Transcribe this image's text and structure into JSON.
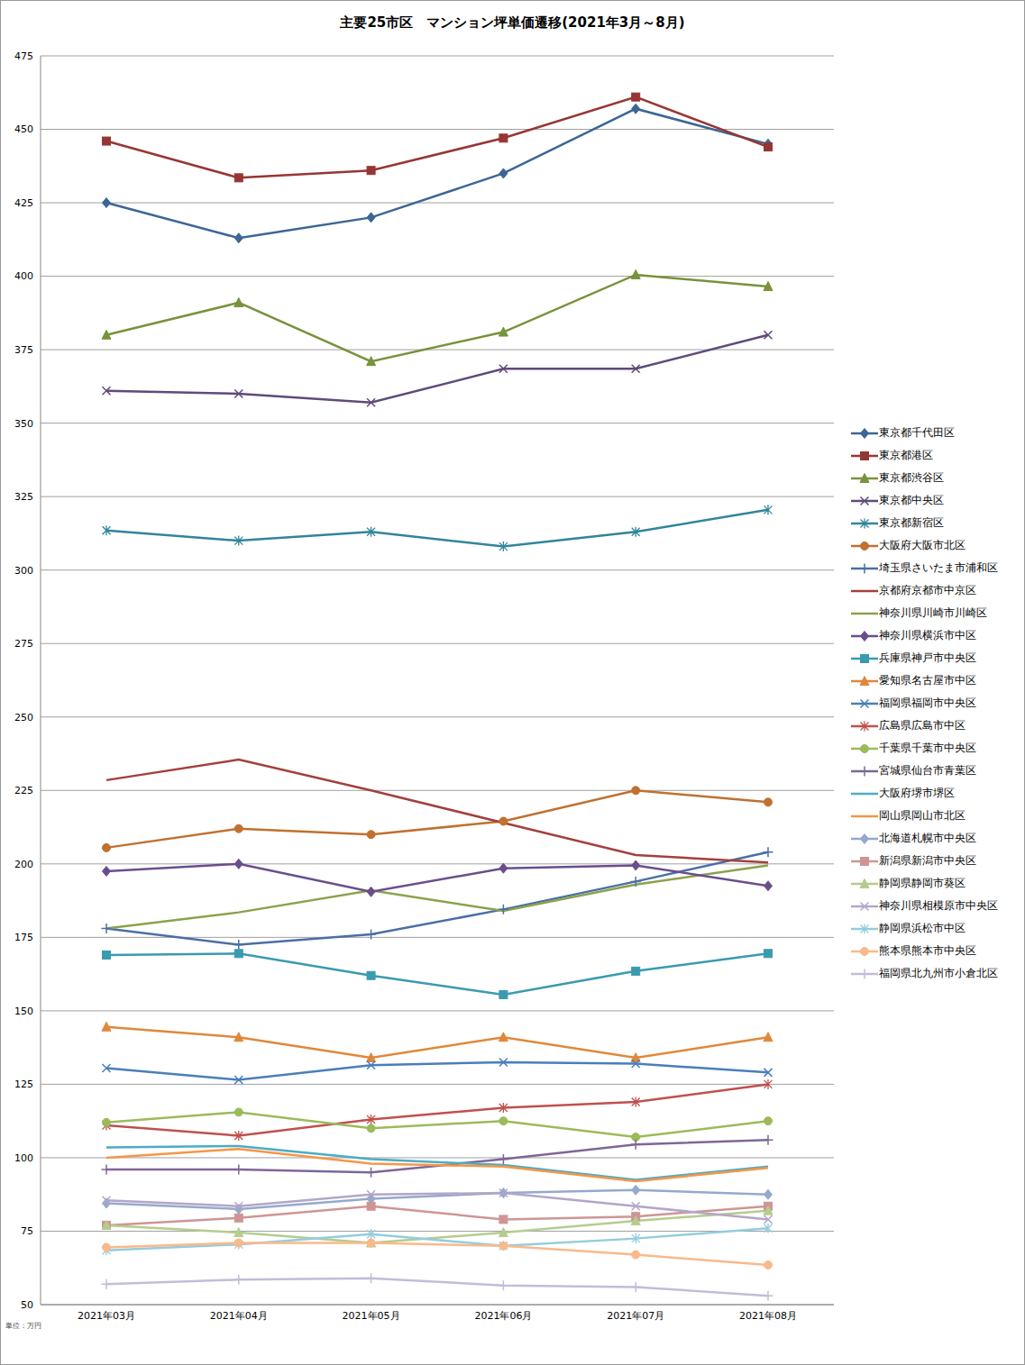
{
  "chart_data": {
    "type": "line",
    "title": "主要25市区　マンション坪単価遷移(2021年3月～8月)",
    "annotations": [
      "単位：万円"
    ],
    "categories": [
      "2021年03月",
      "2021年04月",
      "2021年05月",
      "2021年06月",
      "2021年07月",
      "2021年08月"
    ],
    "ylim": [
      50,
      475
    ],
    "yticks": [
      50,
      75,
      100,
      125,
      150,
      175,
      200,
      225,
      250,
      275,
      300,
      325,
      350,
      375,
      400,
      425,
      450,
      475
    ],
    "grid": true,
    "legend": "right",
    "series": [
      {
        "name": "東京都千代田区",
        "color": "#3C6696",
        "marker": "diamond",
        "values": [
          425,
          413,
          420,
          435,
          457,
          445
        ]
      },
      {
        "name": "東京都港区",
        "color": "#963634",
        "marker": "square",
        "values": [
          446,
          433.5,
          436,
          447,
          461,
          444
        ]
      },
      {
        "name": "東京都渋谷区",
        "color": "#77933C",
        "marker": "triangle",
        "values": [
          380,
          391,
          371,
          381,
          400.5,
          396.5
        ]
      },
      {
        "name": "東京都中央区",
        "color": "#604A7B",
        "marker": "cross",
        "values": [
          361,
          360,
          357,
          368.5,
          368.5,
          380
        ]
      },
      {
        "name": "東京都新宿区",
        "color": "#31859C",
        "marker": "star",
        "values": [
          313.5,
          310,
          313,
          308,
          313,
          320.5
        ]
      },
      {
        "name": "大阪府大阪市北区",
        "color": "#C0712F",
        "marker": "circle",
        "values": [
          205.5,
          212,
          210,
          214.5,
          225,
          221
        ]
      },
      {
        "name": "埼玉県さいたま市浦和区",
        "color": "#4A6FA5",
        "marker": "plus",
        "values": [
          178,
          172.5,
          176,
          184.5,
          194,
          204
        ]
      },
      {
        "name": "京都府京都市中京区",
        "color": "#A3403D",
        "marker": "none",
        "values": [
          228.5,
          235.5,
          225,
          214,
          203,
          200.5
        ]
      },
      {
        "name": "神奈川県川崎市川崎区",
        "color": "#8AA24B",
        "marker": "none",
        "values": [
          178,
          183.5,
          191,
          184,
          193,
          199.5
        ]
      },
      {
        "name": "神奈川県横浜市中区",
        "color": "#6A4E8C",
        "marker": "diamond",
        "values": [
          197.5,
          200,
          190.5,
          198.5,
          199.5,
          192.5
        ]
      },
      {
        "name": "兵庫県神戸市中央区",
        "color": "#3A9AB0",
        "marker": "square",
        "values": [
          169,
          169.5,
          162,
          155.5,
          163.5,
          169.5
        ]
      },
      {
        "name": "愛知県名古屋市中区",
        "color": "#E0883A",
        "marker": "triangle",
        "values": [
          144.5,
          141,
          134,
          141,
          134,
          141
        ]
      },
      {
        "name": "福岡県福岡市中央区",
        "color": "#4A7EBB",
        "marker": "cross",
        "values": [
          130.5,
          126.5,
          131.5,
          132.5,
          132,
          129
        ]
      },
      {
        "name": "広島県広島市中区",
        "color": "#C0504D",
        "marker": "star",
        "values": [
          111,
          107.5,
          113,
          117,
          119,
          125
        ]
      },
      {
        "name": "千葉県千葉市中央区",
        "color": "#9BBB59",
        "marker": "circle",
        "values": [
          112,
          115.5,
          110,
          112.5,
          107,
          112.5
        ]
      },
      {
        "name": "宮城県仙台市青葉区",
        "color": "#7F6599",
        "marker": "plus",
        "values": [
          96,
          96,
          95,
          99.5,
          104.5,
          106
        ]
      },
      {
        "name": "大阪府堺市堺区",
        "color": "#4BACC6",
        "marker": "none",
        "values": [
          103.5,
          104,
          99.5,
          97.5,
          92.5,
          97
        ]
      },
      {
        "name": "岡山県岡山市北区",
        "color": "#F79646",
        "marker": "none",
        "values": [
          100,
          103,
          98,
          97,
          92,
          96.5
        ]
      },
      {
        "name": "北海道札幌市中央区",
        "color": "#95A9CE",
        "marker": "diamond",
        "values": [
          84.5,
          82.5,
          86,
          88,
          89,
          87.5
        ]
      },
      {
        "name": "新潟県新潟市中央区",
        "color": "#CF9595",
        "marker": "square",
        "values": [
          77,
          79.5,
          83.5,
          79,
          80,
          83.5
        ]
      },
      {
        "name": "静岡県静岡市葵区",
        "color": "#B5CC8E",
        "marker": "triangle",
        "values": [
          77,
          74.5,
          71,
          74.5,
          78.5,
          82
        ]
      },
      {
        "name": "神奈川県相模原市中央区",
        "color": "#B3A6C8",
        "marker": "cross",
        "values": [
          85.5,
          83.5,
          87.5,
          88,
          83.5,
          79
        ]
      },
      {
        "name": "静岡県浜松市中区",
        "color": "#93CDDD",
        "marker": "star",
        "values": [
          68.5,
          70.5,
          74,
          70,
          72.5,
          76
        ]
      },
      {
        "name": "熊本県熊本市中央区",
        "color": "#FAB98B",
        "marker": "circle",
        "values": [
          69.5,
          71,
          71,
          70,
          67,
          63.5
        ]
      },
      {
        "name": "福岡県北九州市小倉北区",
        "color": "#C3BCD9",
        "marker": "plus",
        "values": [
          57,
          58.5,
          59,
          56.5,
          56,
          53
        ]
      }
    ]
  }
}
